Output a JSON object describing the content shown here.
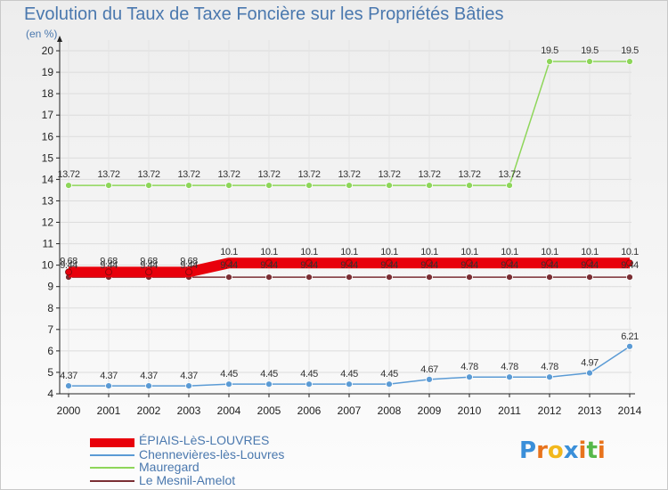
{
  "title": "Evolution du Taux de Taxe Foncière sur les Propriétés Bâties",
  "unit_label": "(en %)",
  "logo": {
    "text": "Proxiti",
    "letter_colors": [
      "#3a8fd9",
      "#e8731c",
      "#f2b81c",
      "#3a8fd9",
      "#e8731c",
      "#56b84a",
      "#e8731c"
    ]
  },
  "chart_data": {
    "type": "line",
    "title": "Evolution du Taux de Taxe Foncière sur les Propriétés Bâties",
    "xlabel": "",
    "ylabel": "(en %)",
    "ylim": [
      4,
      20
    ],
    "x": [
      "2000",
      "2001",
      "2002",
      "2003",
      "2004",
      "2005",
      "2006",
      "2007",
      "2008",
      "2009",
      "2010",
      "2011",
      "2012",
      "2013",
      "2014"
    ],
    "y_ticks": [
      "4",
      "5",
      "6",
      "7",
      "8",
      "9",
      "10",
      "11",
      "12",
      "13",
      "14",
      "15",
      "16",
      "17",
      "18",
      "19",
      "20"
    ],
    "series": [
      {
        "name": "ÉPIAIS-LèS-LOUVRES",
        "color": "#e8000b",
        "values": [
          9.68,
          9.68,
          9.68,
          9.68,
          10.1,
          10.1,
          10.1,
          10.1,
          10.1,
          10.1,
          10.1,
          10.1,
          10.1,
          10.1,
          10.1
        ],
        "labels": [
          "9.68",
          "9.68",
          "9.68",
          "9.68",
          "10.1",
          "10.1",
          "10.1",
          "10.1",
          "10.1",
          "10.1",
          "10.1",
          "10.1",
          "10.1",
          "10.1",
          "10.1"
        ]
      },
      {
        "name": "Chennevières-lès-Louvres",
        "color": "#5b9bd5",
        "values": [
          4.37,
          4.37,
          4.37,
          4.37,
          4.45,
          4.45,
          4.45,
          4.45,
          4.45,
          4.67,
          4.78,
          4.78,
          4.78,
          4.97,
          6.21
        ],
        "labels": [
          "4.37",
          "4.37",
          "4.37",
          "4.37",
          "4.45",
          "4.45",
          "4.45",
          "4.45",
          "4.45",
          "4.67",
          "4.78",
          "4.78",
          "4.78",
          "4.97",
          "6.21"
        ]
      },
      {
        "name": "Mauregard",
        "color": "#8ed65a",
        "values": [
          13.72,
          13.72,
          13.72,
          13.72,
          13.72,
          13.72,
          13.72,
          13.72,
          13.72,
          13.72,
          13.72,
          13.72,
          19.5,
          19.5,
          19.5
        ],
        "labels": [
          "13.72",
          "13.72",
          "13.72",
          "13.72",
          "13.72",
          "13.72",
          "13.72",
          "13.72",
          "13.72",
          "13.72",
          "13.72",
          "13.72",
          "19.5",
          "19.5",
          "19.5"
        ]
      },
      {
        "name": "Le Mesnil-Amelot",
        "color": "#7a2e33",
        "values": [
          9.44,
          9.44,
          9.44,
          9.44,
          9.44,
          9.44,
          9.44,
          9.44,
          9.44,
          9.44,
          9.44,
          9.44,
          9.44,
          9.44,
          9.44
        ],
        "labels": [
          "9.44",
          "9.44",
          "9.44",
          "9.44",
          "9.44",
          "9.44",
          "9.44",
          "9.44",
          "9.44",
          "9.44",
          "9.44",
          "9.44",
          "9.44",
          "9.44",
          "9.44"
        ]
      }
    ],
    "legend": [
      "ÉPIAIS-LèS-LOUVRES",
      "Chennevières-lès-Louvres",
      "Mauregard",
      "Le Mesnil-Amelot"
    ],
    "legend_position": "bottom-left"
  }
}
